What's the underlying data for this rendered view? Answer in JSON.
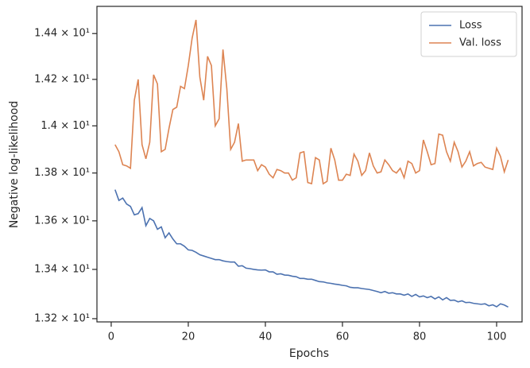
{
  "chart_data": {
    "type": "line",
    "scale_y": "log",
    "legend": "upper right",
    "xlabel": "Epochs",
    "ylabel": "Negative log-likelihood",
    "x": [
      1,
      2,
      3,
      4,
      5,
      6,
      7,
      8,
      9,
      10,
      11,
      12,
      13,
      14,
      15,
      16,
      17,
      18,
      19,
      20,
      21,
      22,
      23,
      24,
      25,
      26,
      27,
      28,
      29,
      30,
      31,
      32,
      33,
      34,
      35,
      36,
      37,
      38,
      39,
      40,
      41,
      42,
      43,
      44,
      45,
      46,
      47,
      48,
      49,
      50,
      51,
      52,
      53,
      54,
      55,
      56,
      57,
      58,
      59,
      60,
      61,
      62,
      63,
      64,
      65,
      66,
      67,
      68,
      69,
      70,
      71,
      72,
      73,
      74,
      75,
      76,
      77,
      78,
      79,
      80,
      81,
      82,
      83,
      84,
      85,
      86,
      87,
      88,
      89,
      90,
      91,
      92,
      93,
      94,
      95,
      96,
      97,
      98,
      99,
      100,
      101,
      102,
      103
    ],
    "series": [
      {
        "name": "Loss",
        "color": "#4c72b0",
        "values": [
          13.73,
          13.685,
          13.695,
          13.67,
          13.66,
          13.625,
          13.63,
          13.655,
          13.58,
          13.61,
          13.6,
          13.565,
          13.575,
          13.53,
          13.55,
          13.525,
          13.505,
          13.505,
          13.495,
          13.48,
          13.478,
          13.47,
          13.46,
          13.455,
          13.45,
          13.445,
          13.44,
          13.44,
          13.435,
          13.432,
          13.43,
          13.43,
          13.413,
          13.415,
          13.405,
          13.403,
          13.4,
          13.398,
          13.397,
          13.398,
          13.39,
          13.39,
          13.38,
          13.382,
          13.377,
          13.376,
          13.372,
          13.37,
          13.363,
          13.363,
          13.36,
          13.36,
          13.355,
          13.35,
          13.349,
          13.345,
          13.343,
          13.34,
          13.338,
          13.335,
          13.333,
          13.327,
          13.325,
          13.325,
          13.322,
          13.32,
          13.318,
          13.314,
          13.31,
          13.305,
          13.31,
          13.303,
          13.305,
          13.3,
          13.3,
          13.295,
          13.3,
          13.29,
          13.298,
          13.288,
          13.292,
          13.285,
          13.29,
          13.28,
          13.288,
          13.276,
          13.285,
          13.274,
          13.275,
          13.268,
          13.272,
          13.265,
          13.266,
          13.262,
          13.26,
          13.258,
          13.26,
          13.252,
          13.256,
          13.248,
          13.26,
          13.255,
          13.247
        ]
      },
      {
        "name": "Val. loss",
        "color": "#dd8452",
        "values": [
          13.92,
          13.89,
          13.835,
          13.83,
          13.82,
          14.11,
          14.2,
          13.92,
          13.86,
          13.93,
          14.22,
          14.18,
          13.89,
          13.9,
          13.99,
          14.07,
          14.08,
          14.17,
          14.16,
          14.26,
          14.38,
          14.46,
          14.21,
          14.11,
          14.3,
          14.26,
          14.0,
          14.03,
          14.33,
          14.16,
          13.9,
          13.93,
          14.01,
          13.85,
          13.855,
          13.855,
          13.855,
          13.81,
          13.835,
          13.825,
          13.795,
          13.78,
          13.815,
          13.81,
          13.8,
          13.8,
          13.77,
          13.78,
          13.885,
          13.89,
          13.76,
          13.755,
          13.865,
          13.855,
          13.755,
          13.765,
          13.905,
          13.855,
          13.77,
          13.77,
          13.795,
          13.79,
          13.88,
          13.85,
          13.79,
          13.81,
          13.885,
          13.83,
          13.8,
          13.805,
          13.855,
          13.835,
          13.81,
          13.8,
          13.82,
          13.78,
          13.85,
          13.84,
          13.8,
          13.81,
          13.94,
          13.89,
          13.835,
          13.84,
          13.965,
          13.96,
          13.89,
          13.85,
          13.93,
          13.89,
          13.825,
          13.85,
          13.89,
          13.83,
          13.84,
          13.845,
          13.825,
          13.82,
          13.815,
          13.905,
          13.87,
          13.805,
          13.855
        ]
      }
    ],
    "xlim": [
      -3.7,
      106.6
    ],
    "xticks": [
      0,
      20,
      40,
      60,
      80,
      100
    ],
    "ylim": [
      13.187,
      14.52
    ],
    "yticks": [
      {
        "value": 13.2,
        "label": "1.32 × 10¹"
      },
      {
        "value": 13.4,
        "label": "1.34 × 10¹"
      },
      {
        "value": 13.6,
        "label": "1.36 × 10¹"
      },
      {
        "value": 13.8,
        "label": "1.38 × 10¹"
      },
      {
        "value": 14.0,
        "label": "1.4 × 10¹"
      },
      {
        "value": 14.2,
        "label": "1.42 × 10¹"
      },
      {
        "value": 14.4,
        "label": "1.44 × 10¹"
      }
    ]
  }
}
